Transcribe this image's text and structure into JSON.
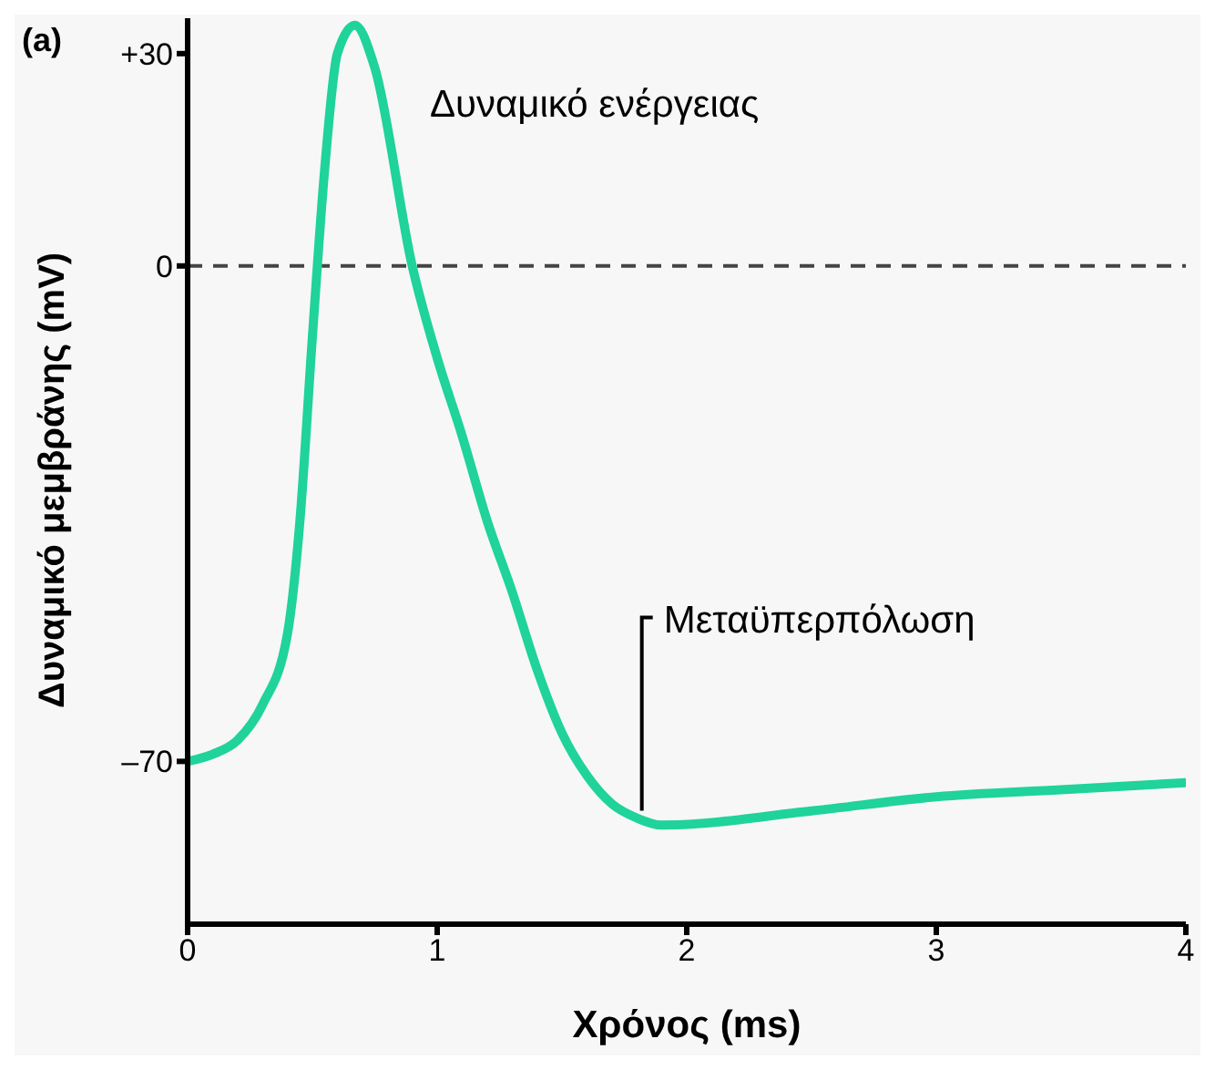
{
  "chart_data": {
    "type": "line",
    "xlabel": "Χρόνος (ms)",
    "ylabel": "Δυναμικό μεμβράνης (mV)",
    "x": [
      0,
      0.1,
      0.2,
      0.3,
      0.4,
      0.45,
      0.5,
      0.55,
      0.6,
      0.67,
      0.75,
      0.9,
      1.0,
      1.1,
      1.2,
      1.3,
      1.4,
      1.5,
      1.6,
      1.7,
      1.8,
      1.9,
      2.5,
      3,
      3.5,
      4
    ],
    "series": [
      {
        "color": "#1fd39a",
        "values": [
          -70,
          -69,
          -67,
          -62,
          -52,
          -36,
          -10,
          14,
          30,
          34,
          28,
          0,
          -13,
          -24,
          -36,
          -46,
          -57,
          -66,
          -72,
          -76,
          -78,
          -79,
          -77,
          -75,
          -74,
          -73
        ]
      }
    ],
    "xlim": [
      0,
      4
    ],
    "xticks": [
      0,
      1,
      2,
      3,
      4
    ],
    "ylim": [
      -93,
      35
    ],
    "yticks": [
      {
        "value": -70,
        "label": "–70"
      },
      0,
      {
        "value": 30,
        "label": "+30"
      }
    ],
    "ref_lines": [
      {
        "axis": "y",
        "value": 0,
        "line_style": "dashed",
        "color": "#444444"
      }
    ],
    "annotations": [
      "(a)",
      "Δυναμικό ενέργειας",
      {
        "text": "Μεταϋπερπόλωση",
        "x": 1.82,
        "y": -78
      }
    ],
    "grid": false,
    "legend": false,
    "marker": "none",
    "line_style": "solid"
  }
}
